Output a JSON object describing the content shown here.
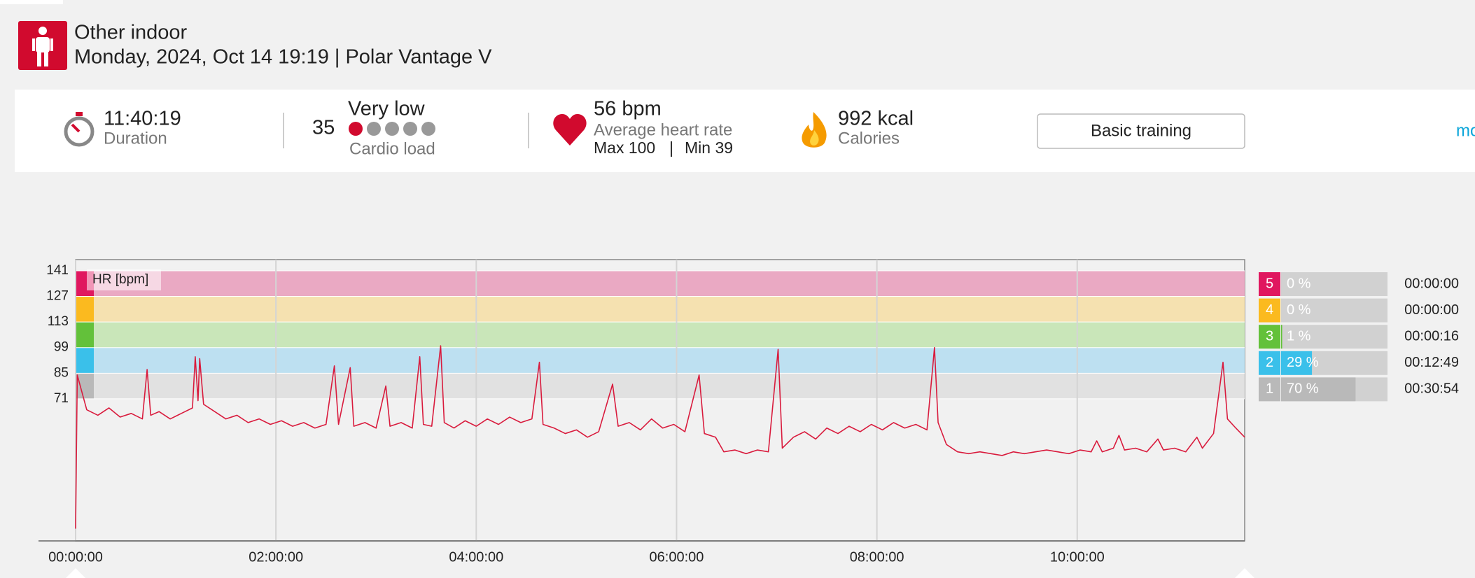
{
  "header": {
    "title": "Other indoor",
    "subtitle": "Monday, 2024, Oct 14 19:19 | Polar Vantage V"
  },
  "summary": {
    "duration": {
      "value": "11:40:19",
      "label": "Duration"
    },
    "cardio_load": {
      "value": 35,
      "level": "Very low",
      "label": "Cardio load"
    },
    "heart_rate": {
      "value": "56 bpm",
      "label": "Average heart rate",
      "max": "Max 100",
      "separator": "|",
      "min": "Min 39"
    },
    "calories": {
      "value": "992 kcal",
      "label": "Calories"
    },
    "button": "Basic training",
    "link": "mo"
  },
  "chart_data": {
    "type": "line",
    "ylabel": "HR [bpm]",
    "color": "#d91b3d",
    "xlim": [
      0,
      42019
    ],
    "ylim": [
      -6.7,
      147.1
    ],
    "xticks": [
      {
        "value": 0,
        "label": "00:00:00"
      },
      {
        "value": 7200,
        "label": "02:00:00"
      },
      {
        "value": 14400,
        "label": "04:00:00"
      },
      {
        "value": 21600,
        "label": "06:00:00"
      },
      {
        "value": 28800,
        "label": "08:00:00"
      },
      {
        "value": 36000,
        "label": "10:00:00"
      }
    ],
    "yticks": [
      71,
      85,
      99,
      113,
      127,
      141
    ],
    "x": [
      0,
      60,
      400,
      800,
      1200,
      1600,
      2000,
      2400,
      2570,
      2700,
      3000,
      3400,
      3800,
      4200,
      4300,
      4400,
      4460,
      4600,
      5000,
      5400,
      5800,
      6200,
      6600,
      7000,
      7400,
      7800,
      8200,
      8600,
      9000,
      9300,
      9450,
      9870,
      10000,
      10400,
      10800,
      11150,
      11300,
      11700,
      12100,
      12370,
      12500,
      12800,
      13120,
      13250,
      13600,
      14000,
      14400,
      14800,
      15200,
      15600,
      16000,
      16400,
      16670,
      16800,
      17200,
      17600,
      18000,
      18400,
      18800,
      19300,
      19500,
      19900,
      20300,
      20700,
      21100,
      21500,
      21900,
      22410,
      22600,
      23000,
      23300,
      23700,
      24100,
      24500,
      24900,
      25250,
      25400,
      25800,
      26200,
      26600,
      27000,
      27400,
      27800,
      28200,
      28600,
      29000,
      29400,
      29800,
      30200,
      30600,
      30870,
      31000,
      31300,
      31700,
      32100,
      32500,
      32900,
      33300,
      33700,
      34100,
      34500,
      34900,
      35300,
      35700,
      36100,
      36500,
      36700,
      36900,
      37300,
      37500,
      37700,
      38100,
      38500,
      38900,
      39100,
      39500,
      39900,
      40300,
      40500,
      40900,
      41240,
      41400,
      41700,
      42019
    ],
    "values": [
      0,
      84,
      65,
      62,
      66,
      61,
      63,
      60,
      87,
      62,
      64,
      60,
      63,
      66,
      94,
      70,
      93,
      68,
      64,
      60,
      62,
      58,
      60,
      57,
      59,
      56,
      58,
      55,
      57,
      89,
      57,
      88,
      56,
      58,
      55,
      78,
      56,
      58,
      55,
      94,
      57,
      56,
      100,
      58,
      55,
      59,
      56,
      60,
      57,
      61,
      58,
      60,
      91,
      57,
      55,
      52,
      54,
      50,
      53,
      79,
      56,
      58,
      54,
      60,
      55,
      57,
      53,
      84,
      52,
      50,
      42,
      43,
      41,
      43,
      42,
      98,
      44,
      50,
      53,
      49,
      55,
      52,
      56,
      53,
      57,
      54,
      58,
      55,
      57,
      54,
      99,
      58,
      46,
      42,
      41,
      42,
      41,
      40,
      42,
      41,
      42,
      43,
      42,
      41,
      43,
      42,
      48,
      42,
      44,
      51,
      43,
      44,
      42,
      49,
      43,
      44,
      42,
      50,
      44,
      52,
      91,
      60,
      55,
      50
    ],
    "zones": {
      "names": [
        "5",
        "4",
        "3",
        "2",
        "1"
      ],
      "values": [
        0,
        0,
        1,
        29,
        70
      ],
      "value_labels": [
        "0 %",
        "0 %",
        "1 %",
        "29 %",
        "70 %"
      ],
      "times": [
        "00:00:00",
        "00:00:00",
        "00:00:16",
        "00:12:49",
        "00:30:54"
      ],
      "colors": [
        "#e0175f",
        "#fbba1f",
        "#63c13a",
        "#3ac0ea",
        "#b9b9b9"
      ],
      "band_colors": [
        "#eaa9c3",
        "#f5e1b0",
        "#c9e6b9",
        "#bde0f1",
        "#e1e1e1"
      ]
    }
  }
}
